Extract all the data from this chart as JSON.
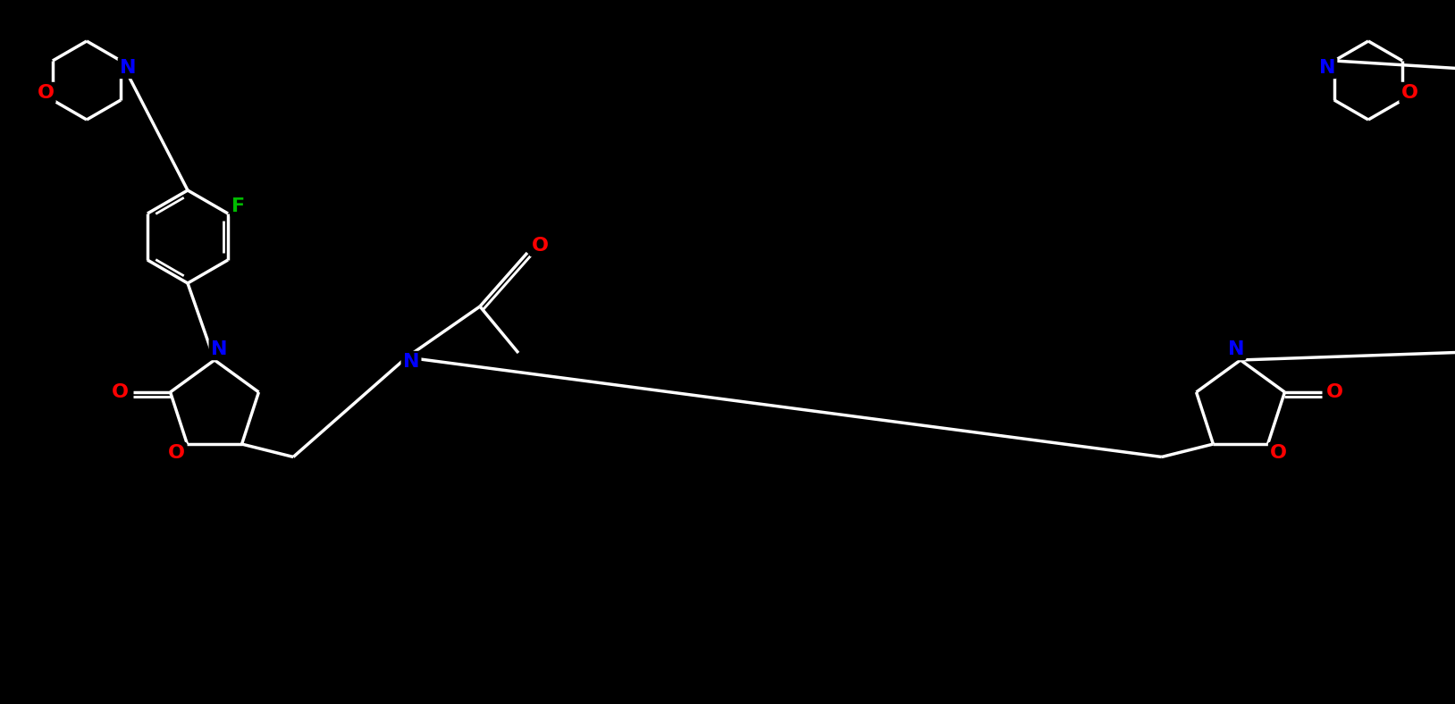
{
  "background_color": "#000000",
  "bond_color": "#ffffff",
  "atom_colors": {
    "O": "#ff0000",
    "N": "#0000ff",
    "F": "#00bb00",
    "C": "#ffffff"
  },
  "figsize": [
    16.28,
    7.88
  ],
  "dpi": 100,
  "font_size": 16,
  "bond_width": 2.5,
  "lw_inner": 2.0,
  "double_sep": 5
}
